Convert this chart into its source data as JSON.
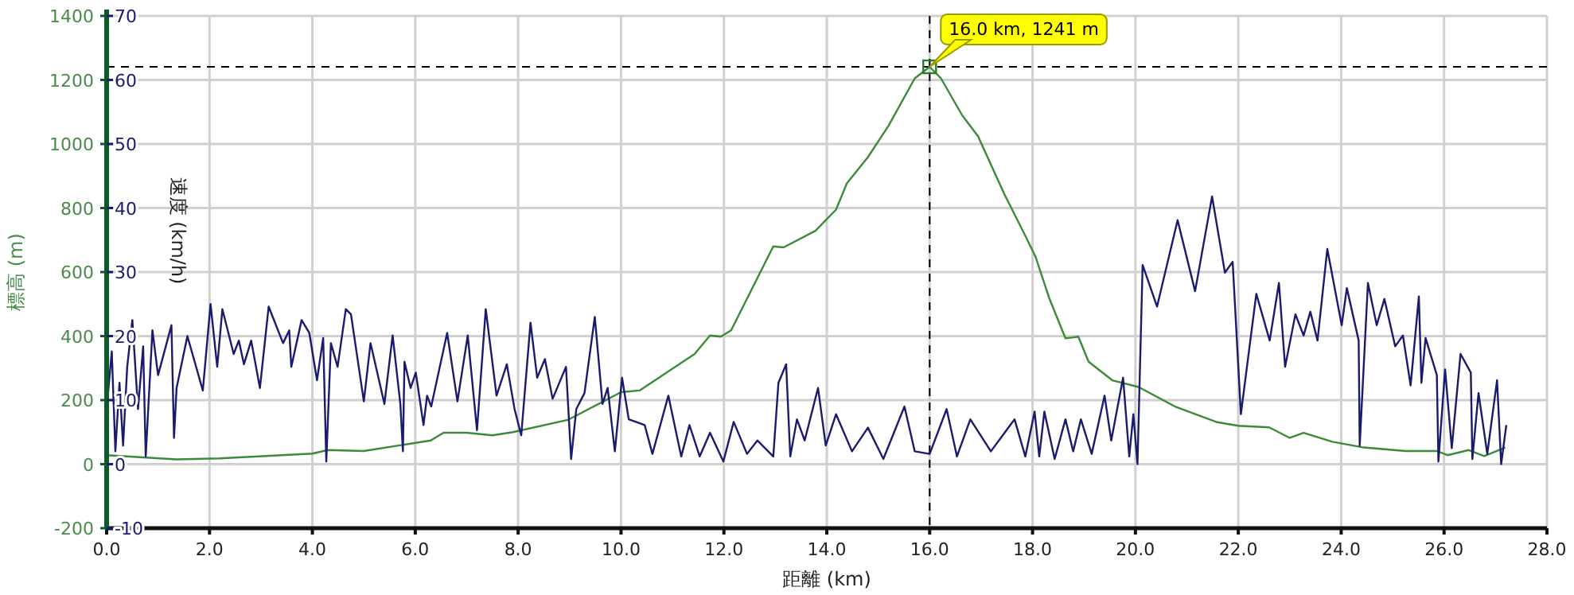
{
  "chart_data": {
    "type": "line",
    "xlabel": "距離 (km)",
    "ylabel": "標高 (m)",
    "y2label": "速度 (km/h)",
    "xlim": [
      0,
      28
    ],
    "xticks": [
      {
        "value": 0,
        "label": "0.0"
      },
      {
        "value": 2,
        "label": "2.0"
      },
      {
        "value": 4,
        "label": "4.0"
      },
      {
        "value": 6,
        "label": "6.0"
      },
      {
        "value": 8,
        "label": "8.0"
      },
      {
        "value": 10,
        "label": "10.0"
      },
      {
        "value": 12,
        "label": "12.0"
      },
      {
        "value": 14,
        "label": "14.0"
      },
      {
        "value": 16,
        "label": "16.0"
      },
      {
        "value": 18,
        "label": "18.0"
      },
      {
        "value": 20,
        "label": "20.0"
      },
      {
        "value": 22,
        "label": "22.0"
      },
      {
        "value": 24,
        "label": "24.0"
      },
      {
        "value": 26,
        "label": "26.0"
      },
      {
        "value": 28,
        "label": "28.0"
      }
    ],
    "ylim": [
      -200,
      1400
    ],
    "yticks": [
      -200,
      0,
      200,
      400,
      600,
      800,
      1000,
      1200,
      1400
    ],
    "y2lim": [
      -10,
      70
    ],
    "y2ticks": [
      -10,
      0,
      10,
      20,
      30,
      40,
      50,
      60,
      70
    ],
    "grid": true,
    "ref_lines": [
      {
        "axis": "x",
        "value": 16.0,
        "line_style": "dashed",
        "color": "#000000"
      },
      {
        "axis": "y",
        "value": 1241,
        "line_style": "dashed",
        "color": "#000000"
      }
    ],
    "annotations": [
      {
        "text": "16.0 km, 1241 m",
        "x": 16.0,
        "y": 1241
      }
    ],
    "series": [
      {
        "type": "line",
        "color": "#3a8a3a",
        "x": [
          0,
          1.36,
          2.2,
          4.0,
          4.3,
          5.0,
          6.3,
          6.55,
          7.0,
          7.5,
          7.9,
          8.98,
          10.0,
          10.36,
          11.43,
          11.73,
          11.94,
          12.14,
          12.55,
          12.96,
          13.16,
          13.78,
          14.18,
          14.39,
          14.8,
          15.2,
          15.71,
          16.0,
          16.22,
          16.63,
          16.94,
          17.45,
          17.86,
          18.06,
          18.33,
          18.64,
          18.89,
          19.09,
          19.55,
          20.06,
          20.77,
          21.59,
          22.0,
          22.6,
          23.0,
          23.27,
          23.83,
          24.44,
          25.25,
          25.86,
          26.07,
          26.48,
          26.78,
          27.19
        ],
        "values": [
          28,
          15,
          18,
          33,
          44,
          41,
          74,
          98,
          98,
          90,
          100,
          139,
          225,
          230,
          344,
          402,
          398,
          418,
          549,
          680,
          677,
          729,
          795,
          877,
          959,
          1057,
          1205,
          1241,
          1205,
          1090,
          1024,
          844,
          713,
          647,
          516,
          393,
          398,
          320,
          262,
          241,
          180,
          131,
          120,
          115,
          82,
          98,
          70,
          52,
          41,
          41,
          28,
          44,
          25,
          52
        ]
      },
      {
        "type": "line",
        "axis": "y2",
        "color": "#1a1a6e",
        "x": [
          0,
          0.1,
          0.17,
          0.25,
          0.32,
          0.4,
          0.5,
          0.61,
          0.71,
          0.76,
          0.89,
          1.0,
          1.26,
          1.31,
          1.36,
          1.57,
          1.87,
          2.02,
          2.15,
          2.25,
          2.47,
          2.57,
          2.67,
          2.81,
          2.98,
          3.15,
          3.43,
          3.55,
          3.59,
          3.79,
          3.94,
          4.09,
          4.21,
          4.27,
          4.36,
          4.49,
          4.65,
          4.75,
          5.0,
          5.13,
          5.4,
          5.56,
          5.71,
          5.76,
          5.79,
          5.91,
          6.01,
          6.16,
          6.23,
          6.31,
          6.62,
          6.82,
          7.02,
          7.2,
          7.37,
          7.58,
          7.78,
          7.93,
          8.06,
          8.24,
          8.37,
          8.52,
          8.67,
          8.93,
          9.03,
          9.13,
          9.29,
          9.49,
          9.64,
          9.74,
          9.88,
          10.02,
          10.15,
          10.46,
          10.61,
          10.92,
          11.17,
          11.33,
          11.53,
          11.73,
          11.99,
          12.19,
          12.45,
          12.65,
          12.96,
          13.06,
          13.21,
          13.29,
          13.42,
          13.57,
          13.83,
          13.98,
          14.18,
          14.49,
          14.8,
          15.1,
          15.51,
          15.71,
          16.0,
          16.33,
          16.53,
          16.79,
          17.19,
          17.65,
          17.86,
          18.04,
          18.13,
          18.23,
          18.43,
          18.64,
          18.79,
          18.94,
          19.15,
          19.4,
          19.53,
          19.76,
          19.88,
          19.96,
          20.04,
          20.14,
          20.42,
          20.82,
          21.16,
          21.49,
          21.74,
          21.89,
          22.05,
          22.35,
          22.61,
          22.79,
          22.91,
          23.11,
          23.27,
          23.4,
          23.54,
          23.73,
          24.01,
          24.11,
          24.34,
          24.36,
          24.52,
          24.69,
          24.84,
          25.05,
          25.2,
          25.35,
          25.51,
          25.56,
          25.64,
          25.86,
          25.89,
          26.02,
          26.15,
          26.32,
          26.52,
          26.55,
          26.67,
          26.84,
          27.03,
          27.11,
          27.21
        ],
        "values": [
          8.6,
          17.6,
          2,
          12.7,
          2.9,
          15.2,
          22.5,
          8.6,
          18.4,
          1.2,
          20.9,
          13.9,
          21.7,
          4.1,
          11.9,
          20,
          11.5,
          25,
          15.2,
          24.2,
          17.2,
          19.3,
          15.6,
          19.3,
          11.9,
          24.6,
          18.9,
          20.9,
          15.2,
          22.5,
          20.5,
          13.1,
          19.7,
          0.4,
          18.9,
          15.2,
          24.2,
          23.4,
          9.8,
          18.9,
          9.4,
          20.1,
          9.4,
          2,
          16,
          11.9,
          14.3,
          6.1,
          10.7,
          9,
          20.5,
          9.8,
          20.1,
          5.3,
          24.2,
          10.7,
          15.6,
          8.6,
          4.5,
          22.1,
          13.5,
          16.4,
          10.2,
          15.2,
          0.8,
          8.6,
          11.1,
          23,
          9.4,
          11.9,
          2,
          13.5,
          7,
          6.1,
          1.6,
          10.7,
          1.2,
          6.1,
          1.2,
          4.9,
          0.4,
          6.6,
          1.6,
          3.7,
          1.2,
          12.7,
          15.6,
          1.2,
          7,
          3.7,
          11.9,
          2.9,
          7.8,
          2,
          5.7,
          0.8,
          9,
          2,
          1.6,
          8.6,
          1.2,
          7,
          2,
          7,
          1.2,
          8.2,
          1.2,
          8.2,
          0.8,
          7,
          2,
          7,
          1.6,
          10.7,
          3.7,
          13.5,
          1.2,
          7.8,
          0,
          31.1,
          24.6,
          38.1,
          27,
          41.8,
          29.9,
          31.6,
          7.8,
          26.6,
          19.3,
          28.3,
          15.2,
          23.4,
          20.1,
          23.8,
          19.3,
          33.6,
          21.7,
          27.5,
          19.3,
          2.9,
          28.3,
          21.7,
          25.8,
          18.4,
          20.1,
          12.3,
          26.2,
          12.7,
          19.7,
          13.9,
          0.4,
          14.8,
          2.5,
          17.2,
          14.3,
          0.8,
          11.1,
          1.6,
          13.1,
          0,
          6.1
        ]
      }
    ]
  }
}
